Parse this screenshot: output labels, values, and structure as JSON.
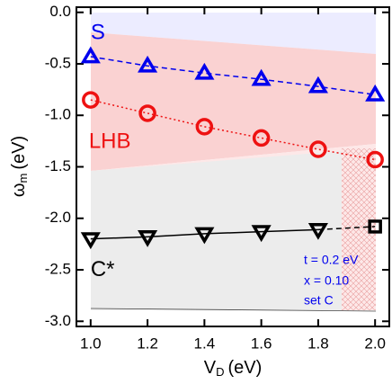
{
  "chart_data": {
    "type": "line",
    "x_label": {
      "main": "V",
      "sub": "D",
      "unit": "(eV)"
    },
    "y_label": {
      "main": "ω",
      "sub": "m",
      "unit": "(eV)"
    },
    "xlim": [
      0.95,
      2.05
    ],
    "ylim": [
      -3.05,
      0.05
    ],
    "xticks": [
      {
        "value": 1,
        "label": "1.0"
      },
      1.2,
      1.4,
      1.6,
      1.8,
      {
        "value": 2,
        "label": "2.0"
      }
    ],
    "yticks": [
      {
        "value": -3,
        "label": "-3.0"
      },
      -2.5,
      {
        "value": -2,
        "label": "-2.0"
      },
      -1.5,
      {
        "value": -1,
        "label": "-1.0"
      },
      -0.5,
      {
        "value": 0,
        "label": "0.0"
      }
    ],
    "series": [
      {
        "name": "S",
        "color": "#0000ee",
        "marker": "triangle-up",
        "line": "dashed",
        "x": [
          1.0,
          1.2,
          1.4,
          1.6,
          1.8,
          2.0
        ],
        "values": [
          -0.43,
          -0.52,
          -0.59,
          -0.65,
          -0.72,
          -0.8
        ]
      },
      {
        "name": "LHB",
        "color": "#ee1111",
        "marker": "circle",
        "line": "dotted",
        "x": [
          1.0,
          1.2,
          1.4,
          1.6,
          1.8,
          2.0
        ],
        "values": [
          -0.85,
          -0.98,
          -1.11,
          -1.22,
          -1.33,
          -1.43
        ]
      },
      {
        "name": "C*",
        "color": "#000000",
        "marker": "triangle-down",
        "line": "solid",
        "x": [
          1.0,
          1.2,
          1.4,
          1.6,
          1.8
        ],
        "values": [
          -2.2,
          -2.18,
          -2.15,
          -2.13,
          -2.11
        ]
      },
      {
        "color": "#000000",
        "marker": "square",
        "line": "dashed",
        "x": [
          2.0
        ],
        "values": [
          -2.08
        ]
      }
    ],
    "annotations": [
      "t = 0.2 eV",
      "x = 0.10",
      "set C"
    ]
  }
}
